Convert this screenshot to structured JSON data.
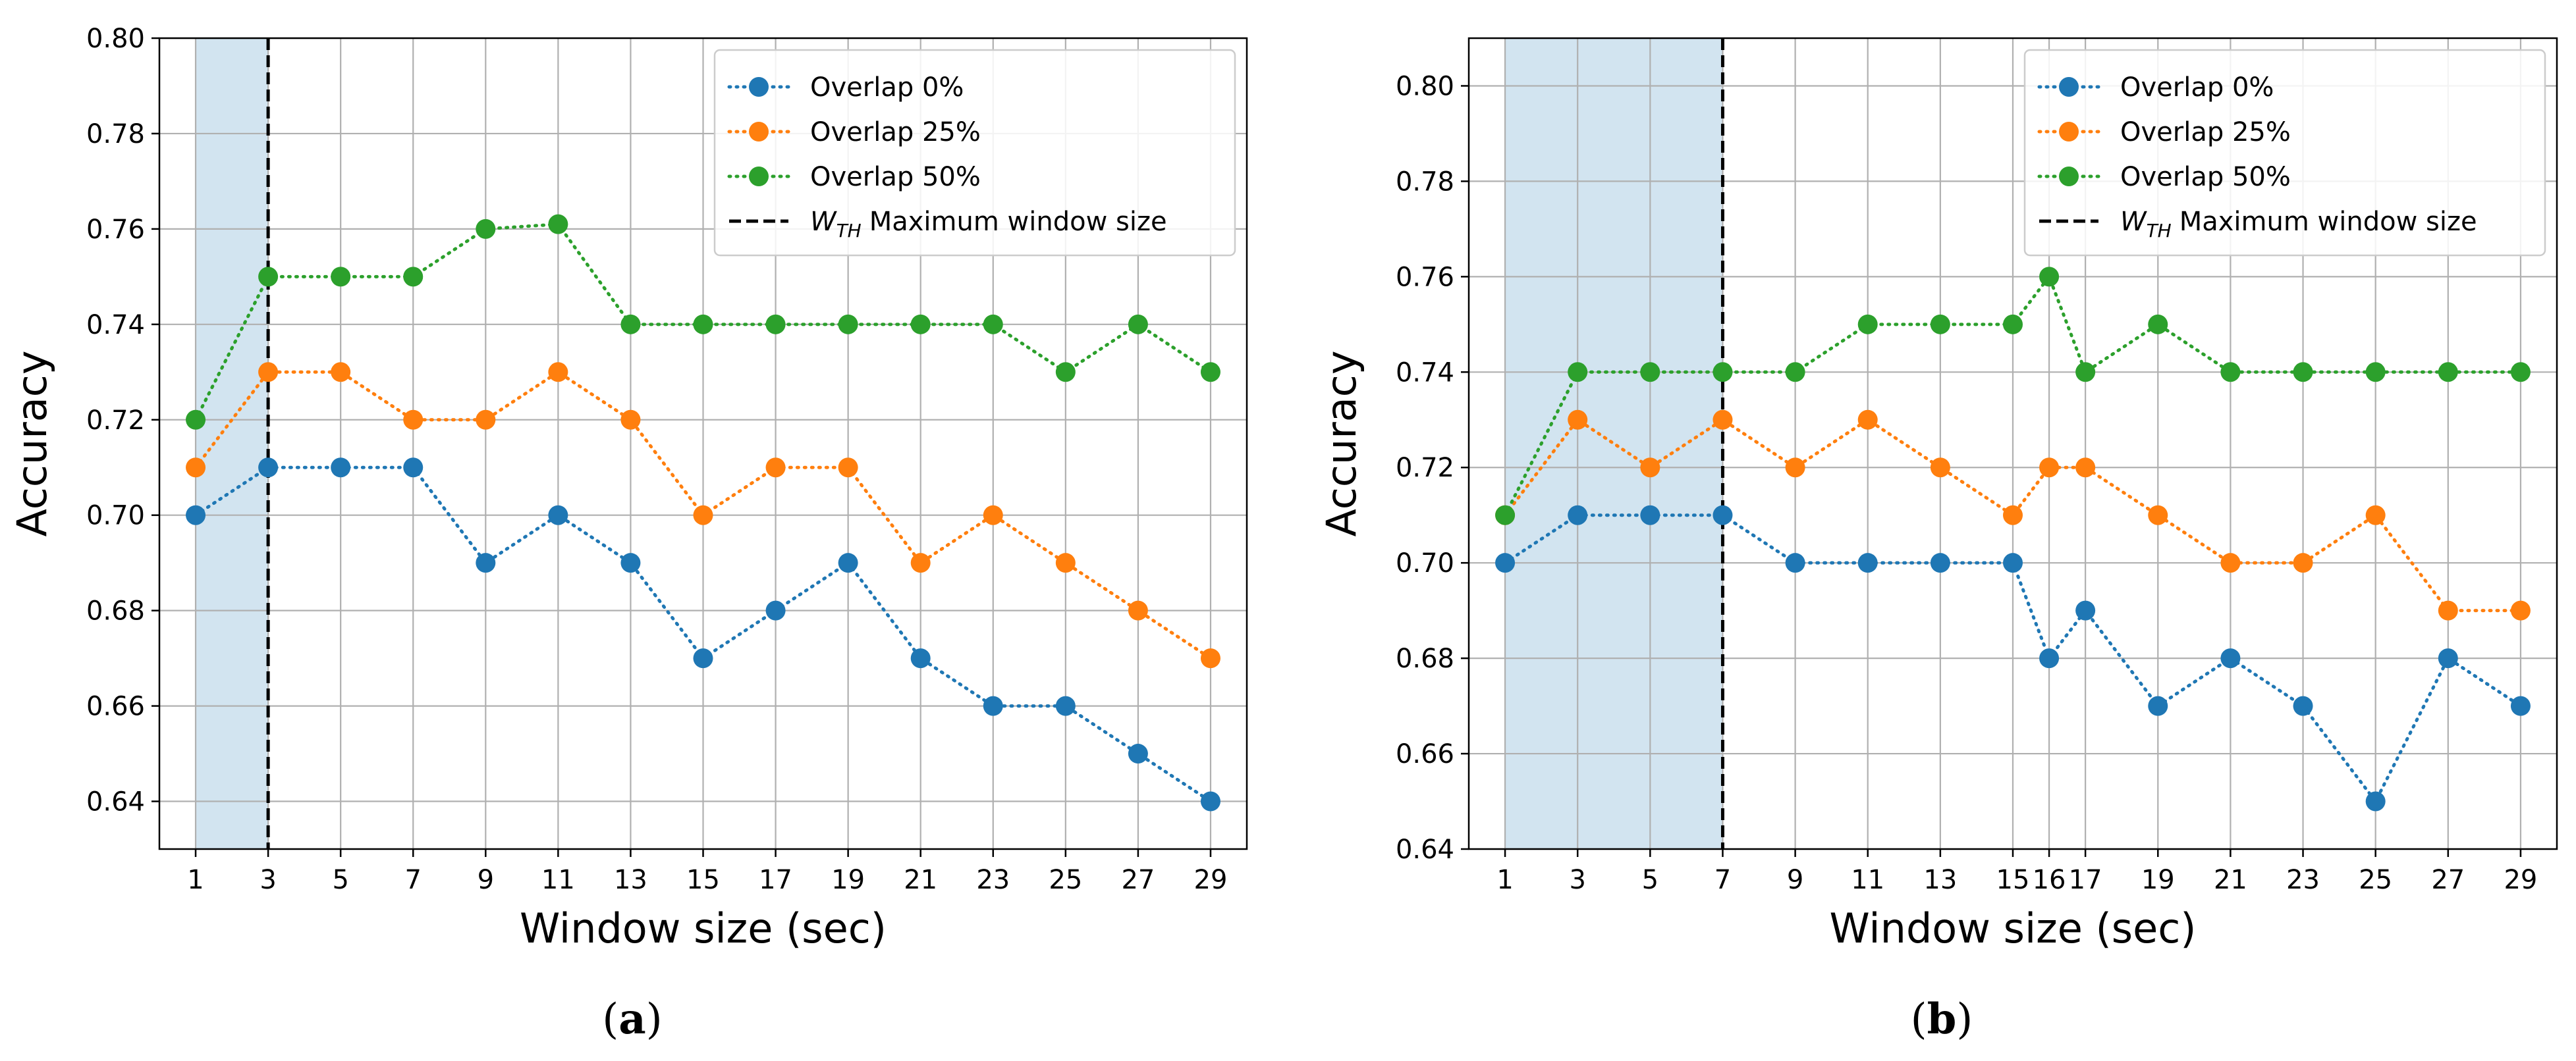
{
  "chart_data": [
    {
      "type": "line",
      "panel_label": "a",
      "xlabel": "Window size (sec)",
      "ylabel": "Accuracy",
      "xlim": [
        0.0,
        30.0
      ],
      "ylim": [
        0.63,
        0.8
      ],
      "xticks": [
        1,
        3,
        5,
        7,
        9,
        11,
        13,
        15,
        17,
        19,
        21,
        23,
        25,
        27,
        29
      ],
      "yticks": [
        0.64,
        0.66,
        0.68,
        0.7,
        0.72,
        0.74,
        0.76,
        0.78,
        0.8
      ],
      "ytick_labels": [
        "0.64",
        "0.66",
        "0.68",
        "0.70",
        "0.72",
        "0.74",
        "0.76",
        "0.78",
        "0.80"
      ],
      "grid": true,
      "legend_position": "top-right",
      "threshold": 3,
      "shaded_range": [
        1,
        3
      ],
      "threshold_legend": {
        "symbol": "W",
        "subscript": "TH",
        "label": "Maximum window size"
      },
      "series": [
        {
          "name": "Overlap 0%",
          "color": "#1f77b4",
          "x": [
            1,
            3,
            5,
            7,
            9,
            11,
            13,
            15,
            17,
            19,
            21,
            23,
            25,
            27,
            29
          ],
          "values": [
            0.7,
            0.71,
            0.71,
            0.71,
            0.69,
            0.7,
            0.69,
            0.67,
            0.68,
            0.69,
            0.67,
            0.66,
            0.66,
            0.65,
            0.64
          ]
        },
        {
          "name": "Overlap 25%",
          "color": "#ff7f0e",
          "x": [
            1,
            3,
            5,
            7,
            9,
            11,
            13,
            15,
            17,
            19,
            21,
            23,
            25,
            27,
            29
          ],
          "values": [
            0.71,
            0.73,
            0.73,
            0.72,
            0.72,
            0.73,
            0.72,
            0.7,
            0.71,
            0.71,
            0.69,
            0.7,
            0.69,
            0.68,
            0.67
          ]
        },
        {
          "name": "Overlap 50%",
          "color": "#2ca02c",
          "x": [
            1,
            3,
            5,
            7,
            9,
            11,
            13,
            15,
            17,
            19,
            21,
            23,
            25,
            27,
            29
          ],
          "values": [
            0.72,
            0.75,
            0.75,
            0.75,
            0.76,
            0.761,
            0.74,
            0.74,
            0.74,
            0.74,
            0.74,
            0.74,
            0.73,
            0.74,
            0.73
          ]
        }
      ]
    },
    {
      "type": "line",
      "panel_label": "b",
      "xlabel": "Window size (sec)",
      "ylabel": "Accuracy",
      "xlim": [
        0.0,
        30.0
      ],
      "ylim": [
        0.64,
        0.81
      ],
      "xticks": [
        1,
        3,
        5,
        7,
        9,
        11,
        13,
        15,
        16,
        17,
        19,
        21,
        23,
        25,
        27,
        29
      ],
      "yticks": [
        0.64,
        0.66,
        0.68,
        0.7,
        0.72,
        0.74,
        0.76,
        0.78,
        0.8
      ],
      "ytick_labels": [
        "0.64",
        "0.66",
        "0.68",
        "0.70",
        "0.72",
        "0.74",
        "0.76",
        "0.78",
        "0.80"
      ],
      "grid": true,
      "legend_position": "top-right",
      "threshold": 7,
      "shaded_range": [
        1,
        7
      ],
      "threshold_legend": {
        "symbol": "W",
        "subscript": "TH",
        "label": "Maximum window size"
      },
      "series": [
        {
          "name": "Overlap 0%",
          "color": "#1f77b4",
          "x": [
            1,
            3,
            5,
            7,
            9,
            11,
            13,
            15,
            16,
            17,
            19,
            21,
            23,
            25,
            27,
            29
          ],
          "values": [
            0.7,
            0.71,
            0.71,
            0.71,
            0.7,
            0.7,
            0.7,
            0.7,
            0.68,
            0.69,
            0.67,
            0.68,
            0.67,
            0.65,
            0.68,
            0.67
          ]
        },
        {
          "name": "Overlap 25%",
          "color": "#ff7f0e",
          "x": [
            1,
            3,
            5,
            7,
            9,
            11,
            13,
            15,
            16,
            17,
            19,
            21,
            23,
            25,
            27,
            29
          ],
          "values": [
            0.71,
            0.73,
            0.72,
            0.73,
            0.72,
            0.73,
            0.72,
            0.71,
            0.72,
            0.72,
            0.71,
            0.7,
            0.7,
            0.71,
            0.69,
            0.69
          ]
        },
        {
          "name": "Overlap 50%",
          "color": "#2ca02c",
          "x": [
            1,
            3,
            5,
            7,
            9,
            11,
            13,
            15,
            16,
            17,
            19,
            21,
            23,
            25,
            27,
            29
          ],
          "values": [
            0.71,
            0.74,
            0.74,
            0.74,
            0.74,
            0.75,
            0.75,
            0.75,
            0.76,
            0.74,
            0.75,
            0.74,
            0.74,
            0.74,
            0.74,
            0.74
          ]
        }
      ]
    }
  ]
}
